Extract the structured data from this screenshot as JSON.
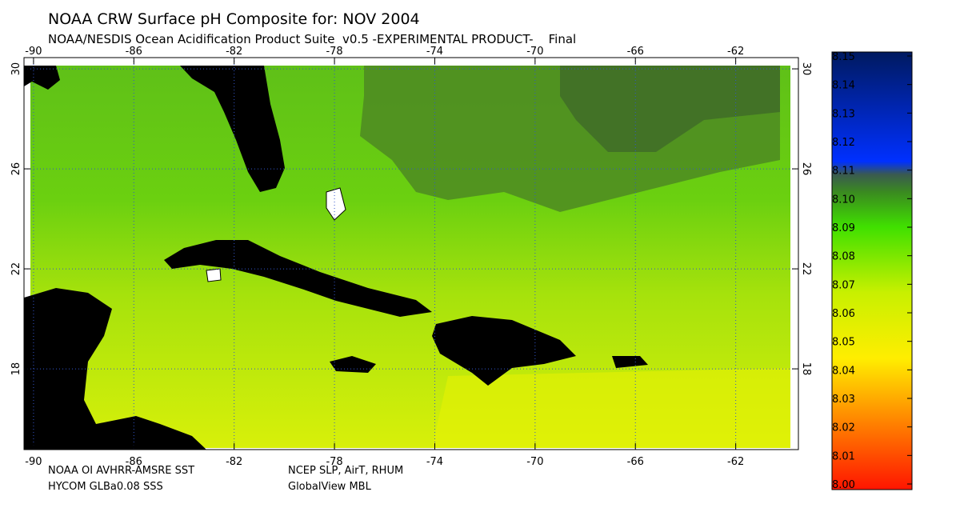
{
  "header": {
    "title": "NOAA CRW Surface pH Composite for: NOV 2004",
    "subtitle": "NOAA/NESDIS Ocean Acidification Product Suite  v0.5 -EXPERIMENTAL PRODUCT-    Final"
  },
  "map": {
    "xlim": [
      -90.38,
      -59.5
    ],
    "ylim": [
      14.77,
      30.45
    ],
    "xticks": [
      -90,
      -86,
      -82,
      -78,
      -74,
      -70,
      -66,
      -62
    ],
    "yticks": [
      18,
      22,
      26,
      30
    ],
    "grid": true
  },
  "colorbar": {
    "lim": [
      8,
      8.15
    ],
    "ticks": [
      {
        "value": 8,
        "label": "8.00"
      },
      8.01,
      8.02,
      8.03,
      8.04,
      8.05,
      8.06,
      8.07,
      8.08,
      8.09,
      {
        "value": 8.1,
        "label": "8.10"
      },
      8.11,
      8.12,
      8.13,
      8.14,
      8.15
    ]
  },
  "footer": {
    "sources": [
      "NOAA OI AVHRR-AMSRE SST",
      "NCEP SLP, AirT, RHUM",
      "HYCOM GLBa0.08 SSS",
      "GlobalView MBL"
    ]
  }
}
